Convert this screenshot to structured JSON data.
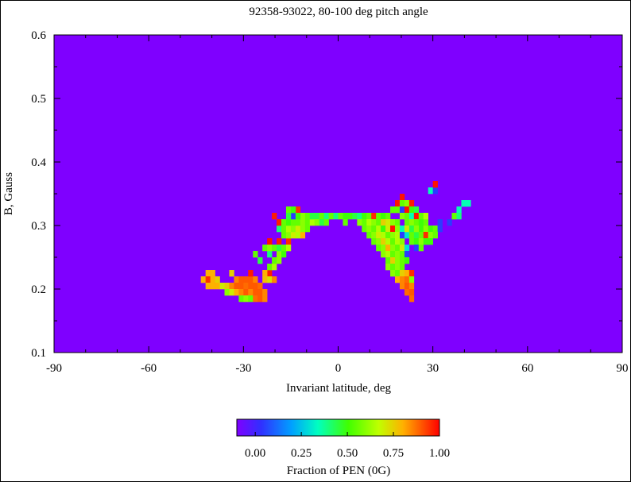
{
  "chart_data": {
    "type": "heatmap",
    "title": "92358-93022, 80-100 deg pitch angle",
    "xlabel": "Invariant latitude, deg",
    "ylabel": "B, Gauss",
    "xlim": [
      -90,
      90
    ],
    "ylim": [
      0.1,
      0.6
    ],
    "x_ticks": [
      "-90",
      "-60",
      "-30",
      "0",
      "30",
      "60",
      "90"
    ],
    "y_ticks": [
      "0.1",
      "0.2",
      "0.3",
      "0.4",
      "0.5",
      "0.6"
    ],
    "colorbar": {
      "label": "Fraction of PEN (0G)",
      "ticks": [
        "0.00",
        "0.25",
        "0.50",
        "0.75",
        "1.00"
      ],
      "range": [
        -0.1,
        1.0
      ]
    },
    "background_value": -0.1,
    "colors": {
      "background": "#7f00ff",
      "frame": "#000000"
    },
    "grid": false,
    "cell_size": {
      "dlat": 1.5,
      "dB": 0.01
    },
    "cells": [
      [
        -41.25,
        0.225,
        0.8
      ],
      [
        -39.75,
        0.225,
        0.8
      ],
      [
        -42.75,
        0.215,
        0.8
      ],
      [
        -41.25,
        0.215,
        0.95
      ],
      [
        -39.75,
        0.215,
        0.8
      ],
      [
        -38.25,
        0.215,
        0.75
      ],
      [
        -41.25,
        0.205,
        0.8
      ],
      [
        -39.75,
        0.205,
        0.8
      ],
      [
        -38.25,
        0.205,
        0.8
      ],
      [
        -36.75,
        0.205,
        0.7
      ],
      [
        -33.75,
        0.225,
        0.75
      ],
      [
        -32.25,
        0.215,
        0.85
      ],
      [
        -30.75,
        0.215,
        0.9
      ],
      [
        -29.25,
        0.215,
        0.9
      ],
      [
        -27.75,
        0.215,
        0.9
      ],
      [
        -26.25,
        0.215,
        0.85
      ],
      [
        -35.25,
        0.205,
        0.75
      ],
      [
        -33.75,
        0.205,
        0.85
      ],
      [
        -32.25,
        0.205,
        0.9
      ],
      [
        -30.75,
        0.205,
        0.9
      ],
      [
        -29.25,
        0.205,
        0.88
      ],
      [
        -27.75,
        0.205,
        0.9
      ],
      [
        -26.25,
        0.205,
        0.9
      ],
      [
        -24.75,
        0.205,
        0.88
      ],
      [
        -35.25,
        0.195,
        0.6
      ],
      [
        -33.75,
        0.195,
        0.7
      ],
      [
        -32.25,
        0.195,
        0.8
      ],
      [
        -30.75,
        0.195,
        0.85
      ],
      [
        -29.25,
        0.195,
        0.9
      ],
      [
        -27.75,
        0.195,
        0.85
      ],
      [
        -26.25,
        0.195,
        0.9
      ],
      [
        -24.75,
        0.195,
        0.9
      ],
      [
        -23.25,
        0.195,
        0.85
      ],
      [
        -30.75,
        0.185,
        0.55
      ],
      [
        -29.25,
        0.185,
        0.6
      ],
      [
        -27.75,
        0.185,
        0.55
      ],
      [
        -26.25,
        0.185,
        0.88
      ],
      [
        -24.75,
        0.185,
        0.9
      ],
      [
        -23.25,
        0.185,
        0.85
      ],
      [
        -27.75,
        0.225,
        0.97
      ],
      [
        -21.75,
        0.225,
        0.97
      ],
      [
        -23.25,
        0.225,
        0.8
      ],
      [
        -23.25,
        0.215,
        0.78
      ],
      [
        -21.75,
        0.215,
        0.72
      ],
      [
        -20.25,
        0.215,
        0.85
      ],
      [
        -21.75,
        0.235,
        0.55
      ],
      [
        -20.25,
        0.235,
        0.65
      ],
      [
        -24.75,
        0.245,
        0.45
      ],
      [
        -20.25,
        0.245,
        0.55
      ],
      [
        -18.75,
        0.245,
        0.6
      ],
      [
        -26.25,
        0.255,
        0.55
      ],
      [
        -21.75,
        0.255,
        0.4
      ],
      [
        -18.75,
        0.255,
        0.6
      ],
      [
        -17.25,
        0.255,
        0.5
      ],
      [
        -21.75,
        0.275,
        0.98
      ],
      [
        -18.75,
        0.275,
        0.97
      ],
      [
        -15.75,
        0.275,
        0.95
      ],
      [
        -23.25,
        0.265,
        0.55
      ],
      [
        -21.75,
        0.265,
        0.6
      ],
      [
        -20.25,
        0.265,
        0.55
      ],
      [
        -18.75,
        0.265,
        0.45
      ],
      [
        -17.25,
        0.265,
        0.55
      ],
      [
        -15.75,
        0.265,
        0.65
      ],
      [
        -18.75,
        0.295,
        0.4
      ],
      [
        -17.25,
        0.285,
        0.55
      ],
      [
        -15.75,
        0.285,
        0.6
      ],
      [
        -14.25,
        0.285,
        0.7
      ],
      [
        -12.75,
        0.285,
        0.65
      ],
      [
        -11.25,
        0.285,
        0.8
      ],
      [
        -17.25,
        0.295,
        0.55
      ],
      [
        -15.75,
        0.295,
        0.65
      ],
      [
        -14.25,
        0.295,
        0.6
      ],
      [
        -12.75,
        0.295,
        0.7
      ],
      [
        -11.25,
        0.295,
        0.6
      ],
      [
        -9.75,
        0.295,
        0.55
      ],
      [
        -20.25,
        0.315,
        0.97
      ],
      [
        -18.75,
        0.305,
        0.97
      ],
      [
        -17.25,
        0.305,
        0.55
      ],
      [
        -15.75,
        0.305,
        0.5
      ],
      [
        -14.25,
        0.305,
        0.55
      ],
      [
        -12.75,
        0.305,
        0.55
      ],
      [
        -11.25,
        0.305,
        0.6
      ],
      [
        -9.75,
        0.305,
        0.55
      ],
      [
        -8.25,
        0.305,
        0.65
      ],
      [
        -15.75,
        0.325,
        0.55
      ],
      [
        -14.25,
        0.315,
        0.05
      ],
      [
        -12.75,
        0.325,
        0.95
      ],
      [
        -11.25,
        0.315,
        0.6
      ],
      [
        -9.75,
        0.315,
        0.55
      ],
      [
        -8.25,
        0.315,
        0.45
      ],
      [
        -6.75,
        0.315,
        0.45
      ],
      [
        -14.25,
        0.325,
        0.5
      ],
      [
        -15.75,
        0.315,
        0.45
      ],
      [
        -12.75,
        0.315,
        0.5
      ],
      [
        -5.25,
        0.315,
        0.55
      ],
      [
        -3.75,
        0.315,
        0.4
      ],
      [
        -2.25,
        0.315,
        0.55
      ],
      [
        -0.75,
        0.315,
        0.4
      ],
      [
        0.75,
        0.315,
        0.55
      ],
      [
        2.25,
        0.315,
        0.5
      ],
      [
        -6.75,
        0.305,
        0.6
      ],
      [
        -5.25,
        0.305,
        0.45
      ],
      [
        -3.75,
        0.305,
        0.55
      ],
      [
        2.25,
        0.305,
        0.55
      ],
      [
        3.75,
        0.315,
        0.5
      ],
      [
        5.25,
        0.315,
        0.45
      ],
      [
        6.75,
        0.315,
        0.4
      ],
      [
        8.25,
        0.315,
        0.5
      ],
      [
        9.75,
        0.315,
        0.55
      ],
      [
        11.25,
        0.315,
        0.95
      ],
      [
        12.75,
        0.315,
        0.55
      ],
      [
        14.25,
        0.315,
        0.5
      ],
      [
        15.75,
        0.315,
        0.55
      ],
      [
        6.75,
        0.305,
        0.6
      ],
      [
        8.25,
        0.305,
        0.55
      ],
      [
        9.75,
        0.305,
        0.65
      ],
      [
        11.25,
        0.305,
        0.6
      ],
      [
        12.75,
        0.305,
        0.55
      ],
      [
        14.25,
        0.305,
        0.75
      ],
      [
        15.75,
        0.305,
        0.7
      ],
      [
        17.25,
        0.305,
        0.6
      ],
      [
        18.75,
        0.305,
        0.55
      ],
      [
        8.25,
        0.295,
        0.55
      ],
      [
        9.75,
        0.295,
        0.6
      ],
      [
        11.25,
        0.295,
        0.55
      ],
      [
        12.75,
        0.295,
        0.65
      ],
      [
        14.25,
        0.295,
        0.5
      ],
      [
        15.75,
        0.295,
        0.7
      ],
      [
        17.25,
        0.295,
        0.98
      ],
      [
        18.75,
        0.295,
        0.6
      ],
      [
        20.25,
        0.295,
        0.35
      ],
      [
        9.75,
        0.285,
        0.55
      ],
      [
        11.25,
        0.285,
        0.6
      ],
      [
        12.75,
        0.285,
        0.7
      ],
      [
        14.25,
        0.285,
        0.65
      ],
      [
        15.75,
        0.285,
        0.55
      ],
      [
        17.25,
        0.285,
        0.6
      ],
      [
        18.75,
        0.285,
        0.65
      ],
      [
        11.25,
        0.275,
        0.55
      ],
      [
        12.75,
        0.275,
        0.6
      ],
      [
        14.25,
        0.275,
        0.75
      ],
      [
        15.75,
        0.275,
        0.65
      ],
      [
        17.25,
        0.275,
        0.55
      ],
      [
        18.75,
        0.275,
        0.65
      ],
      [
        20.25,
        0.275,
        0.6
      ],
      [
        12.75,
        0.265,
        0.55
      ],
      [
        14.25,
        0.265,
        0.6
      ],
      [
        15.75,
        0.265,
        0.8
      ],
      [
        17.25,
        0.265,
        0.6
      ],
      [
        18.75,
        0.265,
        0.55
      ],
      [
        20.25,
        0.265,
        0.7
      ],
      [
        21.75,
        0.265,
        0.3
      ],
      [
        14.25,
        0.255,
        0.6
      ],
      [
        15.75,
        0.255,
        0.65
      ],
      [
        17.25,
        0.255,
        0.55
      ],
      [
        18.75,
        0.255,
        0.6
      ],
      [
        20.25,
        0.255,
        0.55
      ],
      [
        21.75,
        0.255,
        0.05
      ],
      [
        15.75,
        0.245,
        0.55
      ],
      [
        17.25,
        0.245,
        0.75
      ],
      [
        18.75,
        0.245,
        0.6
      ],
      [
        20.25,
        0.245,
        0.55
      ],
      [
        21.75,
        0.245,
        0.5
      ],
      [
        15.75,
        0.235,
        0.6
      ],
      [
        17.25,
        0.235,
        0.55
      ],
      [
        18.75,
        0.235,
        0.6
      ],
      [
        20.25,
        0.235,
        0.55
      ],
      [
        17.25,
        0.225,
        0.6
      ],
      [
        18.75,
        0.225,
        0.55
      ],
      [
        20.25,
        0.225,
        0.75
      ],
      [
        21.75,
        0.225,
        0.8
      ],
      [
        23.25,
        0.225,
        0.95
      ],
      [
        18.75,
        0.215,
        0.8
      ],
      [
        20.25,
        0.215,
        0.85
      ],
      [
        21.75,
        0.215,
        0.88
      ],
      [
        23.25,
        0.215,
        0.6
      ],
      [
        20.25,
        0.205,
        0.85
      ],
      [
        21.75,
        0.205,
        0.9
      ],
      [
        23.25,
        0.205,
        0.85
      ],
      [
        21.75,
        0.195,
        0.88
      ],
      [
        23.25,
        0.195,
        0.9
      ],
      [
        23.25,
        0.185,
        0.88
      ],
      [
        20.25,
        0.345,
        0.98
      ],
      [
        18.75,
        0.335,
        0.98
      ],
      [
        20.25,
        0.335,
        0.55
      ],
      [
        21.75,
        0.335,
        0.6
      ],
      [
        23.25,
        0.335,
        0.97
      ],
      [
        17.25,
        0.325,
        0.55
      ],
      [
        18.75,
        0.325,
        0.55
      ],
      [
        20.25,
        0.325,
        0.05
      ],
      [
        21.75,
        0.325,
        0.98
      ],
      [
        23.25,
        0.325,
        0.5
      ],
      [
        24.75,
        0.325,
        0.45
      ],
      [
        20.25,
        0.315,
        0.6
      ],
      [
        21.75,
        0.315,
        0.55
      ],
      [
        23.25,
        0.315,
        0.35
      ],
      [
        24.75,
        0.315,
        0.98
      ],
      [
        21.75,
        0.305,
        0.55
      ],
      [
        23.25,
        0.305,
        0.6
      ],
      [
        24.75,
        0.305,
        0.55
      ],
      [
        26.25,
        0.305,
        0.5
      ],
      [
        20.25,
        0.285,
        0.05
      ],
      [
        21.75,
        0.285,
        0.3
      ],
      [
        23.25,
        0.285,
        0.55
      ],
      [
        24.75,
        0.285,
        0.45
      ],
      [
        26.25,
        0.295,
        0.5
      ],
      [
        27.75,
        0.295,
        0.6
      ],
      [
        29.25,
        0.295,
        0.5
      ],
      [
        30.75,
        0.295,
        0.55
      ],
      [
        32.25,
        0.295,
        0.05
      ],
      [
        21.75,
        0.295,
        0.7
      ],
      [
        23.25,
        0.295,
        0.45
      ],
      [
        24.75,
        0.295,
        0.6
      ],
      [
        27.75,
        0.305,
        0.55
      ],
      [
        23.25,
        0.275,
        0.55
      ],
      [
        24.75,
        0.275,
        0.5
      ],
      [
        26.25,
        0.285,
        0.55
      ],
      [
        27.75,
        0.285,
        0.95
      ],
      [
        29.25,
        0.285,
        0.6
      ],
      [
        30.75,
        0.285,
        0.55
      ],
      [
        24.75,
        0.265,
        0.05
      ],
      [
        26.25,
        0.275,
        0.6
      ],
      [
        27.75,
        0.275,
        0.5
      ],
      [
        29.25,
        0.275,
        0.5
      ],
      [
        26.25,
        0.265,
        0.55
      ],
      [
        26.25,
        0.315,
        0.55
      ],
      [
        27.75,
        0.315,
        0.65
      ],
      [
        29.25,
        0.355,
        0.35
      ],
      [
        30.75,
        0.355,
        0.05
      ],
      [
        30.75,
        0.365,
        0.98
      ],
      [
        35.25,
        0.305,
        0.05
      ],
      [
        36.75,
        0.315,
        0.55
      ],
      [
        38.25,
        0.325,
        0.35
      ],
      [
        38.25,
        0.315,
        0.4
      ],
      [
        39.75,
        0.335,
        0.35
      ],
      [
        41.25,
        0.335,
        0.35
      ],
      [
        32.25,
        0.305,
        0.05
      ]
    ]
  }
}
